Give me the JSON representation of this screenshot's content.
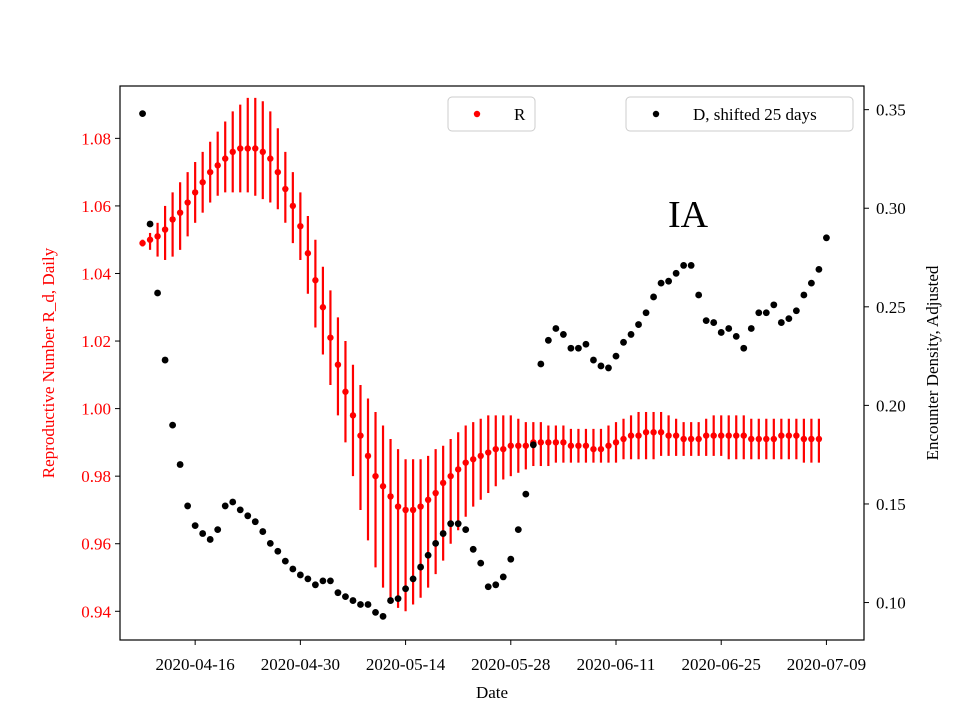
{
  "chart_data": {
    "type": "scatter",
    "annotation": "IA",
    "xlabel": "Date",
    "ylabel_left": "Reproductive Number R_d, Daily",
    "ylabel_right": "Encounter Density, Adjusted",
    "x_tick_labels": [
      "2020-04-16",
      "2020-04-30",
      "2020-05-14",
      "2020-05-28",
      "2020-06-11",
      "2020-06-25",
      "2020-07-09"
    ],
    "y_left_ticks": [
      "0.94",
      "0.96",
      "0.98",
      "1.00",
      "1.02",
      "1.04",
      "1.06",
      "1.08"
    ],
    "y_right_ticks": [
      "0.10",
      "0.15",
      "0.20",
      "0.25",
      "0.30",
      "0.35"
    ],
    "x_range": [
      "2020-04-06",
      "2020-07-14"
    ],
    "y_left_range": [
      0.9315,
      1.0955
    ],
    "y_right_range": [
      0.081,
      0.362
    ],
    "legend_left": {
      "label": "R",
      "placement": "top-center"
    },
    "legend_right": {
      "label": "D, shifted 25 days",
      "placement": "top-right"
    },
    "colors": {
      "R": "#ff0000",
      "D": "#000000",
      "left_axis": "#ff0000",
      "right_axis": "#000000"
    },
    "grid": false,
    "series": [
      {
        "name": "R",
        "axis": "left",
        "start_date": "2020-04-09",
        "step_days": 1,
        "values": [
          1.049,
          1.05,
          1.051,
          1.053,
          1.056,
          1.058,
          1.061,
          1.064,
          1.067,
          1.07,
          1.072,
          1.074,
          1.076,
          1.077,
          1.077,
          1.077,
          1.076,
          1.074,
          1.07,
          1.065,
          1.06,
          1.054,
          1.046,
          1.038,
          1.03,
          1.021,
          1.013,
          1.005,
          0.998,
          0.992,
          0.986,
          0.98,
          0.977,
          0.974,
          0.971,
          0.97,
          0.97,
          0.971,
          0.973,
          0.975,
          0.978,
          0.98,
          0.982,
          0.984,
          0.985,
          0.986,
          0.987,
          0.988,
          0.988,
          0.989,
          0.989,
          0.989,
          0.99,
          0.99,
          0.99,
          0.99,
          0.99,
          0.989,
          0.989,
          0.989,
          0.988,
          0.988,
          0.989,
          0.99,
          0.991,
          0.992,
          0.992,
          0.993,
          0.993,
          0.993,
          0.992,
          0.992,
          0.991,
          0.991,
          0.991,
          0.992,
          0.992,
          0.992,
          0.992,
          0.992,
          0.992,
          0.991,
          0.991,
          0.991,
          0.991,
          0.992,
          0.992,
          0.992,
          0.991,
          0.991,
          0.991
        ],
        "err_low": [
          1.048,
          1.047,
          1.045,
          1.044,
          1.045,
          1.047,
          1.051,
          1.055,
          1.058,
          1.061,
          1.063,
          1.064,
          1.064,
          1.064,
          1.064,
          1.063,
          1.062,
          1.061,
          1.059,
          1.055,
          1.049,
          1.044,
          1.034,
          1.024,
          1.016,
          1.007,
          0.998,
          0.99,
          0.98,
          0.97,
          0.961,
          0.953,
          0.947,
          0.943,
          0.941,
          0.94,
          0.942,
          0.944,
          0.947,
          0.951,
          0.955,
          0.96,
          0.964,
          0.968,
          0.971,
          0.973,
          0.975,
          0.977,
          0.979,
          0.98,
          0.981,
          0.982,
          0.983,
          0.983,
          0.983,
          0.984,
          0.984,
          0.984,
          0.984,
          0.984,
          0.984,
          0.984,
          0.984,
          0.984,
          0.985,
          0.985,
          0.985,
          0.985,
          0.985,
          0.986,
          0.986,
          0.986,
          0.986,
          0.986,
          0.986,
          0.986,
          0.986,
          0.986,
          0.985,
          0.985,
          0.985,
          0.985,
          0.985,
          0.985,
          0.985,
          0.985,
          0.985,
          0.985,
          0.984,
          0.984,
          0.984
        ],
        "err_high": [
          1.05,
          1.052,
          1.055,
          1.06,
          1.064,
          1.067,
          1.07,
          1.073,
          1.076,
          1.079,
          1.082,
          1.085,
          1.088,
          1.09,
          1.092,
          1.092,
          1.091,
          1.088,
          1.083,
          1.076,
          1.07,
          1.064,
          1.057,
          1.05,
          1.042,
          1.035,
          1.027,
          1.02,
          1.013,
          1.007,
          1.003,
          0.999,
          0.995,
          0.991,
          0.988,
          0.985,
          0.985,
          0.985,
          0.986,
          0.988,
          0.989,
          0.991,
          0.993,
          0.995,
          0.996,
          0.997,
          0.998,
          0.998,
          0.998,
          0.998,
          0.997,
          0.996,
          0.996,
          0.996,
          0.995,
          0.995,
          0.995,
          0.994,
          0.994,
          0.994,
          0.994,
          0.994,
          0.995,
          0.996,
          0.997,
          0.998,
          0.999,
          0.999,
          0.999,
          0.999,
          0.998,
          0.997,
          0.996,
          0.996,
          0.996,
          0.997,
          0.998,
          0.998,
          0.998,
          0.998,
          0.998,
          0.997,
          0.997,
          0.997,
          0.997,
          0.997,
          0.997,
          0.997,
          0.997,
          0.997,
          0.997
        ]
      },
      {
        "name": "D, shifted 25 days",
        "axis": "right",
        "points": [
          [
            "2020-04-09",
            0.348
          ],
          [
            "2020-04-10",
            0.292
          ],
          [
            "2020-04-11",
            0.257
          ],
          [
            "2020-04-12",
            0.223
          ],
          [
            "2020-04-13",
            0.19
          ],
          [
            "2020-04-14",
            0.17
          ],
          [
            "2020-04-15",
            0.149
          ],
          [
            "2020-04-16",
            0.139
          ],
          [
            "2020-04-17",
            0.135
          ],
          [
            "2020-04-18",
            0.132
          ],
          [
            "2020-04-19",
            0.137
          ],
          [
            "2020-04-20",
            0.149
          ],
          [
            "2020-04-21",
            0.151
          ],
          [
            "2020-04-22",
            0.147
          ],
          [
            "2020-04-23",
            0.144
          ],
          [
            "2020-04-24",
            0.141
          ],
          [
            "2020-04-25",
            0.136
          ],
          [
            "2020-04-26",
            0.13
          ],
          [
            "2020-04-27",
            0.126
          ],
          [
            "2020-04-28",
            0.121
          ],
          [
            "2020-04-29",
            0.117
          ],
          [
            "2020-04-30",
            0.114
          ],
          [
            "2020-05-01",
            0.112
          ],
          [
            "2020-05-02",
            0.109
          ],
          [
            "2020-05-03",
            0.111
          ],
          [
            "2020-05-04",
            0.111
          ],
          [
            "2020-05-05",
            0.105
          ],
          [
            "2020-05-06",
            0.103
          ],
          [
            "2020-05-07",
            0.101
          ],
          [
            "2020-05-08",
            0.099
          ],
          [
            "2020-05-09",
            0.099
          ],
          [
            "2020-05-10",
            0.095
          ],
          [
            "2020-05-11",
            0.093
          ],
          [
            "2020-05-12",
            0.101
          ],
          [
            "2020-05-13",
            0.102
          ],
          [
            "2020-05-14",
            0.107
          ],
          [
            "2020-05-15",
            0.112
          ],
          [
            "2020-05-16",
            0.118
          ],
          [
            "2020-05-17",
            0.124
          ],
          [
            "2020-05-18",
            0.13
          ],
          [
            "2020-05-19",
            0.135
          ],
          [
            "2020-05-20",
            0.14
          ],
          [
            "2020-05-21",
            0.14
          ],
          [
            "2020-05-22",
            0.137
          ],
          [
            "2020-05-23",
            0.127
          ],
          [
            "2020-05-24",
            0.12
          ],
          [
            "2020-05-25",
            0.108
          ],
          [
            "2020-05-26",
            0.109
          ],
          [
            "2020-05-27",
            0.113
          ],
          [
            "2020-05-28",
            0.122
          ],
          [
            "2020-05-29",
            0.137
          ],
          [
            "2020-05-30",
            0.155
          ],
          [
            "2020-05-31",
            0.18
          ],
          [
            "2020-06-01",
            0.221
          ],
          [
            "2020-06-02",
            0.233
          ],
          [
            "2020-06-03",
            0.239
          ],
          [
            "2020-06-04",
            0.236
          ],
          [
            "2020-06-05",
            0.229
          ],
          [
            "2020-06-06",
            0.229
          ],
          [
            "2020-06-07",
            0.231
          ],
          [
            "2020-06-08",
            0.223
          ],
          [
            "2020-06-09",
            0.22
          ],
          [
            "2020-06-10",
            0.219
          ],
          [
            "2020-06-11",
            0.225
          ],
          [
            "2020-06-12",
            0.232
          ],
          [
            "2020-06-13",
            0.236
          ],
          [
            "2020-06-14",
            0.241
          ],
          [
            "2020-06-15",
            0.247
          ],
          [
            "2020-06-16",
            0.255
          ],
          [
            "2020-06-17",
            0.262
          ],
          [
            "2020-06-18",
            0.263
          ],
          [
            "2020-06-19",
            0.267
          ],
          [
            "2020-06-20",
            0.271
          ],
          [
            "2020-06-21",
            0.271
          ],
          [
            "2020-06-22",
            0.256
          ],
          [
            "2020-06-23",
            0.243
          ],
          [
            "2020-06-24",
            0.242
          ],
          [
            "2020-06-25",
            0.237
          ],
          [
            "2020-06-26",
            0.239
          ],
          [
            "2020-06-27",
            0.235
          ],
          [
            "2020-06-28",
            0.229
          ],
          [
            "2020-06-29",
            0.239
          ],
          [
            "2020-06-30",
            0.247
          ],
          [
            "2020-07-01",
            0.247
          ],
          [
            "2020-07-02",
            0.251
          ],
          [
            "2020-07-03",
            0.242
          ],
          [
            "2020-07-04",
            0.244
          ],
          [
            "2020-07-05",
            0.248
          ],
          [
            "2020-07-06",
            0.256
          ],
          [
            "2020-07-07",
            0.262
          ],
          [
            "2020-07-08",
            0.269
          ],
          [
            "2020-07-09",
            0.285
          ]
        ]
      }
    ]
  }
}
